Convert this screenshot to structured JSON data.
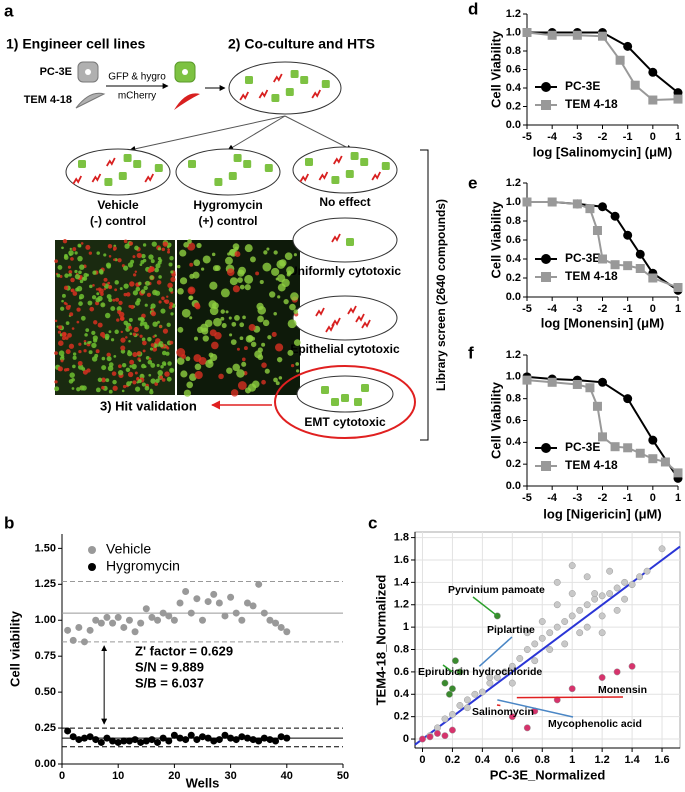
{
  "figure": {
    "panel_a": {
      "label": "a",
      "step1": "1) Engineer cell lines",
      "step2": "2) Co-culture and HTS",
      "step3": "3) Hit validation",
      "cell_line_1": "PC-3E",
      "cell_line_2": "TEM 4-18",
      "marker_1": "GFP & hygro",
      "marker_2": "mCherry",
      "outcomes": {
        "vehicle": [
          "Vehicle",
          "(-) control"
        ],
        "hygromycin": [
          "Hygromycin",
          "(+) control"
        ],
        "no_effect": "No effect",
        "uniform": "Uniformly cytotoxic",
        "epithelial": "Epithelial cytotoxic",
        "emt": "EMT cytotoxic"
      },
      "screen": "Library screen (2640 compounds)"
    }
  },
  "chart_data": [
    {
      "panel": "d",
      "type": "line",
      "xlabel": "log [Salinomycin] (μM)",
      "ylabel": "Cell Viability",
      "xlim": [
        -5,
        1
      ],
      "ylim": [
        0,
        1.2
      ],
      "xticks": [
        -5,
        -4,
        -3,
        -2,
        -1,
        0,
        1
      ],
      "yticks": [
        {
          "value": 0,
          "label": "0.0"
        },
        0.2,
        0.4,
        0.6,
        0.8,
        {
          "value": 1,
          "label": "1.0"
        },
        1.2
      ],
      "legend": "lower left",
      "series": [
        {
          "name": "PC-3E",
          "color": "#000000",
          "marker": "circle",
          "x": [
            -5,
            -4,
            -3,
            -2,
            -1,
            0,
            1
          ],
          "values": [
            1.0,
            1.0,
            1.0,
            1.0,
            0.85,
            0.57,
            0.35
          ]
        },
        {
          "name": "TEM 4-18",
          "color": "#999999",
          "marker": "square",
          "x": [
            -5,
            -4,
            -3,
            -2,
            -1.3,
            -0.7,
            0,
            1
          ],
          "values": [
            1.0,
            0.97,
            0.97,
            0.96,
            0.7,
            0.43,
            0.27,
            0.28
          ]
        }
      ]
    },
    {
      "panel": "e",
      "type": "line",
      "xlabel": "log [Monensin] (μM)",
      "ylabel": "Cell Viability",
      "xlim": [
        -5,
        1
      ],
      "ylim": [
        0,
        1.2
      ],
      "xticks": [
        -5,
        -4,
        -3,
        -2,
        -1,
        0,
        1
      ],
      "yticks": [
        {
          "value": 0,
          "label": "0.0"
        },
        0.2,
        0.4,
        0.6,
        0.8,
        {
          "value": 1,
          "label": "1.0"
        },
        1.2
      ],
      "legend": "lower left",
      "series": [
        {
          "name": "PC-3E",
          "color": "#000000",
          "marker": "circle",
          "x": [
            -5,
            -4,
            -3,
            -2,
            -1.5,
            -1,
            -0.5,
            0,
            1
          ],
          "values": [
            1.0,
            1.0,
            0.98,
            0.95,
            0.85,
            0.65,
            0.45,
            0.25,
            0.07
          ]
        },
        {
          "name": "TEM 4-18",
          "color": "#999999",
          "marker": "square",
          "x": [
            -5,
            -4,
            -3,
            -2.5,
            -2.2,
            -2,
            -1.5,
            -1,
            -0.5,
            0,
            1
          ],
          "values": [
            1.0,
            1.0,
            0.98,
            0.93,
            0.7,
            0.4,
            0.34,
            0.33,
            0.3,
            0.2,
            0.1
          ]
        }
      ]
    },
    {
      "panel": "f",
      "type": "line",
      "xlabel": "log [Nigericin] (μM)",
      "ylabel": "Cell Viability",
      "xlim": [
        -5,
        1
      ],
      "ylim": [
        0,
        1.2
      ],
      "xticks": [
        -5,
        -4,
        -3,
        -2,
        -1,
        0,
        1
      ],
      "yticks": [
        {
          "value": 0,
          "label": "0.0"
        },
        0.2,
        0.4,
        0.6,
        0.8,
        {
          "value": 1,
          "label": "1.0"
        },
        1.2
      ],
      "legend": "lower left",
      "series": [
        {
          "name": "PC-3E",
          "color": "#000000",
          "marker": "circle",
          "x": [
            -5,
            -4,
            -3,
            -2,
            -1,
            0,
            1
          ],
          "values": [
            1.0,
            0.98,
            0.97,
            0.95,
            0.8,
            0.42,
            0.07
          ]
        },
        {
          "name": "TEM 4-18",
          "color": "#999999",
          "marker": "square",
          "x": [
            -5,
            -4,
            -3,
            -2.5,
            -2.2,
            -2,
            -1.5,
            -1,
            -0.5,
            0,
            0.5,
            1
          ],
          "values": [
            0.97,
            0.95,
            0.93,
            0.9,
            0.73,
            0.45,
            0.36,
            0.35,
            0.3,
            0.25,
            0.22,
            0.12
          ]
        }
      ]
    },
    {
      "panel": "b",
      "type": "scatter",
      "xlabel": "Wells",
      "ylabel": "Cell viability",
      "xlim": [
        0,
        50
      ],
      "ylim": [
        0,
        1.6
      ],
      "xticks": [
        0,
        10,
        20,
        30,
        40,
        50
      ],
      "yticks": [
        {
          "value": 0,
          "label": "0.00"
        },
        0.25,
        {
          "value": 0.5,
          "label": "0.50"
        },
        0.75,
        {
          "value": 1,
          "label": "1.00"
        },
        1.25,
        {
          "value": 1.5,
          "label": "1.50"
        }
      ],
      "legend": "upper left",
      "series": [
        {
          "name": "Vehicle",
          "color": "#999999",
          "x": [
            1,
            2,
            3,
            4,
            5,
            6,
            7,
            8,
            9,
            10,
            11,
            12,
            13,
            14,
            15,
            16,
            17,
            18,
            19,
            20,
            21,
            22,
            23,
            24,
            25,
            26,
            27,
            28,
            29,
            30,
            31,
            32,
            33,
            34,
            35,
            36,
            37,
            38,
            39,
            40
          ],
          "values": [
            0.93,
            0.86,
            0.95,
            0.85,
            0.93,
            1.0,
            0.98,
            1.02,
            0.98,
            1.02,
            0.95,
            1.0,
            0.92,
            0.98,
            1.08,
            1.02,
            1.0,
            1.05,
            1.03,
            1.0,
            1.12,
            1.2,
            1.05,
            1.15,
            1.0,
            1.13,
            1.18,
            1.12,
            1.03,
            1.16,
            1.05,
            1.0,
            1.12,
            1.1,
            1.25,
            1.05,
            1.0,
            0.98,
            0.95,
            0.92
          ]
        },
        {
          "name": "Hygromycin",
          "color": "#000000",
          "x": [
            1,
            2,
            3,
            4,
            5,
            6,
            7,
            8,
            9,
            10,
            11,
            12,
            13,
            14,
            15,
            16,
            17,
            18,
            19,
            20,
            21,
            22,
            23,
            24,
            25,
            26,
            27,
            28,
            29,
            30,
            31,
            32,
            33,
            34,
            35,
            36,
            37,
            38,
            39,
            40
          ],
          "values": [
            0.23,
            0.19,
            0.17,
            0.18,
            0.19,
            0.17,
            0.15,
            0.18,
            0.16,
            0.15,
            0.16,
            0.16,
            0.17,
            0.15,
            0.16,
            0.17,
            0.15,
            0.18,
            0.16,
            0.2,
            0.18,
            0.17,
            0.2,
            0.17,
            0.19,
            0.18,
            0.16,
            0.17,
            0.2,
            0.18,
            0.17,
            0.19,
            0.18,
            0.17,
            0.16,
            0.18,
            0.17,
            0.16,
            0.19,
            0.18
          ]
        }
      ],
      "hlines": [
        {
          "value": 1.05,
          "color": "#999999",
          "dash": false
        },
        {
          "value": 1.27,
          "color": "#999999",
          "dash": true
        },
        {
          "value": 0.85,
          "color": "#999999",
          "dash": true
        },
        {
          "value": 0.18,
          "color": "#000000",
          "dash": false
        },
        {
          "value": 0.25,
          "color": "#000000",
          "dash": true
        },
        {
          "value": 0.12,
          "color": "#000000",
          "dash": true
        }
      ],
      "annotations": [
        {
          "text": "Z' factor = 0.629"
        },
        {
          "text": "S/N = 9.889"
        },
        {
          "text": "S/B = 6.037"
        }
      ]
    },
    {
      "panel": "c",
      "type": "scatter",
      "xlabel": "PC-3E_Normalized",
      "ylabel": "TEM4-18_Normalized",
      "xlim": [
        -0.05,
        1.72
      ],
      "ylim": [
        -0.08,
        1.85
      ],
      "xticks": [
        0,
        0.2,
        0.4,
        0.6,
        0.8,
        1,
        1.2,
        1.4,
        1.6
      ],
      "yticks": [
        0,
        0.2,
        0.4,
        0.6,
        0.8,
        1,
        1.2,
        1.4,
        1.6,
        1.8
      ],
      "grid": true,
      "diagonal": {
        "color": "#2a35d6"
      },
      "series": [
        {
          "color": "#c8c8c8",
          "x": [
            0.05,
            0.1,
            0.15,
            0.2,
            0.25,
            0.3,
            0.35,
            0.4,
            0.45,
            0.5,
            0.55,
            0.6,
            0.65,
            0.7,
            0.75,
            0.8,
            0.85,
            0.9,
            0.95,
            1.0,
            1.05,
            1.1,
            1.15,
            1.2,
            1.25,
            1.3,
            1.35,
            1.4,
            1.45,
            1.5,
            0.7,
            0.8,
            0.9,
            1.0,
            1.1,
            1.2,
            1.3,
            0.75,
            0.85,
            0.95,
            1.05,
            1.15,
            1.25,
            1.35,
            0.9,
            1.0,
            1.1,
            1.2,
            1.6,
            0.6,
            0.3,
            0.45
          ],
          "values": [
            0.03,
            0.1,
            0.18,
            0.22,
            0.3,
            0.28,
            0.4,
            0.42,
            0.5,
            0.55,
            0.6,
            0.65,
            0.72,
            0.8,
            0.85,
            0.9,
            0.95,
            1.0,
            1.05,
            1.1,
            1.15,
            1.2,
            1.25,
            1.28,
            1.3,
            1.35,
            1.4,
            1.38,
            1.45,
            1.5,
            0.95,
            1.05,
            1.2,
            1.3,
            1.0,
            1.1,
            1.15,
            0.7,
            0.8,
            0.85,
            0.95,
            1.3,
            1.5,
            1.25,
            1.4,
            1.55,
            1.45,
            0.95,
            1.7,
            0.5,
            0.35,
            0.55
          ]
        },
        {
          "color": "#d6336c",
          "x": [
            0.0,
            0.05,
            0.1,
            0.15,
            0.2,
            0.6,
            0.75,
            0.9,
            1.0,
            1.2,
            1.3,
            1.4,
            0.7
          ],
          "values": [
            0.0,
            0.02,
            0.05,
            0.03,
            0.08,
            0.2,
            0.25,
            0.35,
            0.45,
            0.55,
            0.6,
            0.65,
            0.1
          ]
        },
        {
          "color": "#3a8a2e",
          "x": [
            0.15,
            0.2,
            0.25,
            0.18,
            0.5,
            0.22
          ],
          "values": [
            0.5,
            0.45,
            0.6,
            0.4,
            1.1,
            0.7
          ]
        }
      ],
      "annotations": [
        {
          "text": "Pyrvinium pamoate",
          "x": 0.5,
          "y": 1.1,
          "color": "#2ca02c"
        },
        {
          "text": "Piplartine",
          "x": 0.38,
          "y": 0.65,
          "color": "#4a86c5"
        },
        {
          "text": "Epirubicin hydrochloride",
          "x": 0.2,
          "y": 0.6,
          "color": "#2ca02c"
        },
        {
          "text": "Monensin",
          "x": 0.63,
          "y": 0.37,
          "color": "#e02020"
        },
        {
          "text": "Salinomycin",
          "x": 0.52,
          "y": 0.3,
          "color": "#e02020"
        },
        {
          "text": "Mycophenolic acid",
          "x": 0.5,
          "y": 0.35,
          "color": "#4a86c5"
        }
      ]
    }
  ]
}
